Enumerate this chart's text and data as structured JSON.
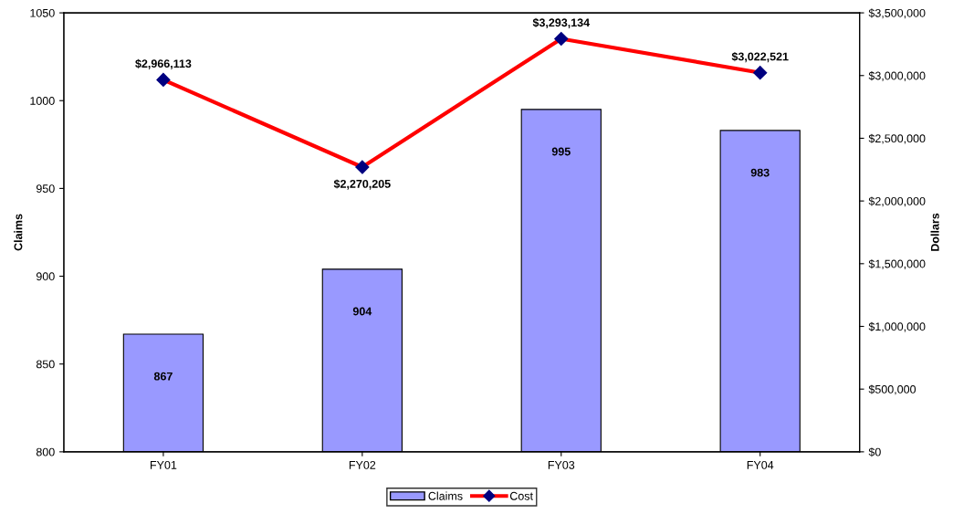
{
  "chart_data": {
    "type": "bar",
    "categories": [
      "FY01",
      "FY02",
      "FY03",
      "FY04"
    ],
    "ylabel": "Claims",
    "y2label": "Dollars",
    "ylim": [
      800,
      1050
    ],
    "yticks": [
      800,
      850,
      900,
      950,
      1000,
      1050
    ],
    "y2lim": [
      0,
      3500000
    ],
    "y2ticks": [
      {
        "value": 0,
        "label": "$0"
      },
      {
        "value": 500000,
        "label": "$500,000"
      },
      {
        "value": 1000000,
        "label": "$1,000,000"
      },
      {
        "value": 1500000,
        "label": "$1,500,000"
      },
      {
        "value": 2000000,
        "label": "$2,000,000"
      },
      {
        "value": 2500000,
        "label": "$2,500,000"
      },
      {
        "value": 3000000,
        "label": "$3,000,000"
      },
      {
        "value": 3500000,
        "label": "$3,500,000"
      }
    ],
    "series": [
      {
        "name": "Claims",
        "color": "#9999ff",
        "values": [
          867,
          904,
          995,
          983
        ],
        "value_labels": [
          "867",
          "904",
          "995",
          "983"
        ]
      },
      {
        "name": "Cost",
        "type": "line",
        "axis": "y2",
        "color": "#ff0000",
        "marker": "diamond",
        "values": [
          2966113,
          2270205,
          3293134,
          3022521
        ],
        "value_labels": [
          "$2,966,113",
          "$2,270,205",
          "$3,293,134",
          "$3,022,521"
        ]
      }
    ],
    "legend": "bottom",
    "grid": false
  }
}
